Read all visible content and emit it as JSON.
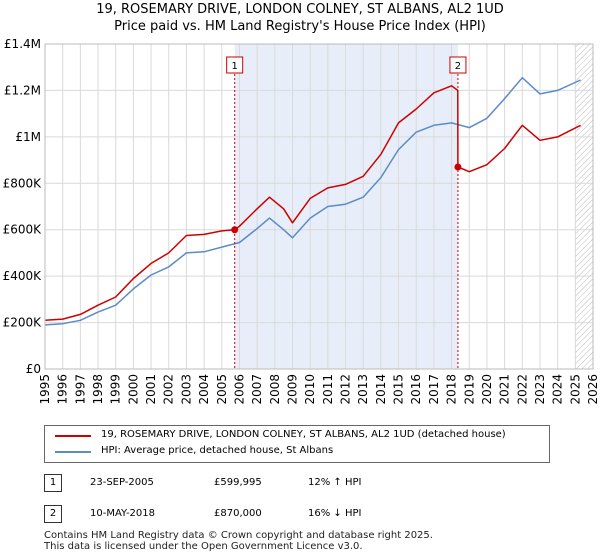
{
  "chart_data": {
    "type": "line",
    "title": "19, ROSEMARY DRIVE, LONDON COLNEY, ST ALBANS, AL2 1UD",
    "subtitle": "Price paid vs. HM Land Registry's House Price Index (HPI)",
    "xlim": [
      1995,
      2026
    ],
    "ylim": [
      0,
      1400000
    ],
    "x_ticks": [
      1995,
      1996,
      1997,
      1998,
      1999,
      2000,
      2001,
      2002,
      2003,
      2004,
      2005,
      2006,
      2007,
      2008,
      2009,
      2010,
      2011,
      2012,
      2013,
      2014,
      2015,
      2016,
      2017,
      2018,
      2019,
      2020,
      2021,
      2022,
      2023,
      2024,
      2025,
      2026
    ],
    "y_ticks": [
      {
        "value": 0,
        "label": "£0"
      },
      {
        "value": 200000,
        "label": "£200K"
      },
      {
        "value": 400000,
        "label": "£400K"
      },
      {
        "value": 600000,
        "label": "£600K"
      },
      {
        "value": 800000,
        "label": "£800K"
      },
      {
        "value": 1000000,
        "label": "£1M"
      },
      {
        "value": 1200000,
        "label": "£1.2M"
      },
      {
        "value": 1400000,
        "label": "£1.4M"
      }
    ],
    "shaded_period": [
      2005.73,
      2018.36
    ],
    "future_hatch_from": 2025.0,
    "series": [
      {
        "name": "19, ROSEMARY DRIVE, LONDON COLNEY, ST ALBANS, AL2 1UD (detached house)",
        "color": "#cc0000",
        "x": [
          1995,
          1996,
          1997,
          1998,
          1999,
          2000,
          2001,
          2002,
          2003,
          2004,
          2005,
          2005.73,
          2006,
          2007,
          2007.7,
          2008.5,
          2009,
          2010,
          2011,
          2012,
          2013,
          2014,
          2015,
          2016,
          2017,
          2018,
          2018.35,
          2018.36,
          2019,
          2020,
          2021,
          2022,
          2023,
          2024,
          2025.3
        ],
        "values": [
          210000,
          215000,
          235000,
          275000,
          310000,
          390000,
          455000,
          500000,
          575000,
          580000,
          595000,
          599995,
          615000,
          690000,
          740000,
          690000,
          630000,
          735000,
          780000,
          795000,
          830000,
          925000,
          1060000,
          1120000,
          1190000,
          1220000,
          1200000,
          870000,
          850000,
          880000,
          950000,
          1050000,
          985000,
          1000000,
          1050000
        ]
      },
      {
        "name": "HPI: Average price, detached house, St Albans",
        "color": "#5b8bc8",
        "x": [
          1995,
          1996,
          1997,
          1998,
          1999,
          2000,
          2001,
          2002,
          2003,
          2004,
          2005,
          2006,
          2007,
          2007.7,
          2008.5,
          2009,
          2010,
          2011,
          2012,
          2013,
          2014,
          2015,
          2016,
          2017,
          2018,
          2019,
          2020,
          2021,
          2022,
          2023,
          2024,
          2025.3
        ],
        "values": [
          190000,
          195000,
          210000,
          245000,
          275000,
          345000,
          405000,
          440000,
          500000,
          505000,
          525000,
          545000,
          605000,
          650000,
          600000,
          565000,
          650000,
          700000,
          710000,
          740000,
          825000,
          945000,
          1020000,
          1050000,
          1060000,
          1040000,
          1080000,
          1165000,
          1255000,
          1185000,
          1200000,
          1245000
        ]
      }
    ],
    "annotations": [
      {
        "id": "1",
        "x": 2005.73,
        "value": 599995
      },
      {
        "id": "2",
        "x": 2018.36,
        "value": 870000
      }
    ]
  },
  "legend": {
    "property": "19, ROSEMARY DRIVE, LONDON COLNEY, ST ALBANS, AL2 1UD (detached house)",
    "hpi": "HPI: Average price, detached house, St Albans"
  },
  "transactions": [
    {
      "id": "1",
      "date": "23-SEP-2005",
      "price": "£599,995",
      "hpi": "12% ↑ HPI"
    },
    {
      "id": "2",
      "date": "10-MAY-2018",
      "price": "£870,000",
      "hpi": "16% ↓ HPI"
    }
  ],
  "footer": {
    "line1": "Contains HM Land Registry data © Crown copyright and database right 2025.",
    "line2": "This data is licensed under the Open Government Licence v3.0."
  },
  "colors": {
    "property": "#cc0000",
    "hpi": "#5b8bc8",
    "shade": "#e8eef9",
    "grid": "#d9d9d9"
  }
}
